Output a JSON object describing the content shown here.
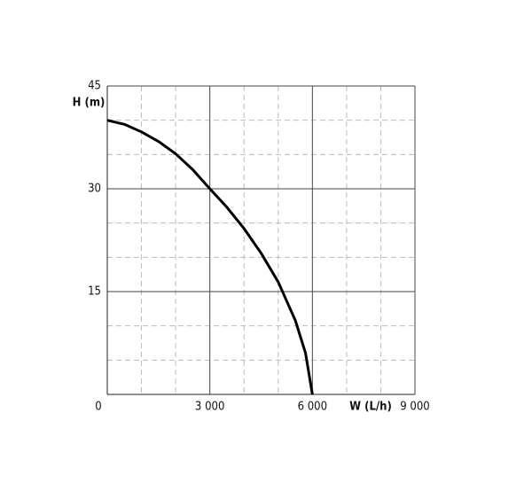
{
  "chart_data": {
    "type": "line",
    "y_label": "H (m)",
    "x_label": "W (L/h)",
    "x": [
      0,
      500,
      1000,
      1500,
      2000,
      2500,
      3000,
      3500,
      4000,
      4500,
      5000,
      5500,
      5800,
      6000
    ],
    "series": [
      {
        "color": "#000000",
        "values": [
          40,
          39.4,
          38.3,
          36.9,
          35.1,
          32.8,
          30,
          27.3,
          24.2,
          20.6,
          16.4,
          10.8,
          6,
          0
        ]
      }
    ],
    "xlim": [
      0,
      9000
    ],
    "ylim": [
      0,
      45
    ],
    "xticks": [
      0,
      {
        "value": 3000,
        "label": "3 000"
      },
      {
        "value": 6000,
        "label": "6 000"
      },
      {
        "value": 9000,
        "label": "9 000"
      }
    ],
    "yticks": [
      15,
      30,
      45
    ],
    "xminorticks": [
      1000,
      2000,
      4000,
      5000,
      7000,
      8000
    ],
    "yminorticks": [
      5,
      10,
      20,
      25,
      35,
      40
    ],
    "grid": true
  }
}
